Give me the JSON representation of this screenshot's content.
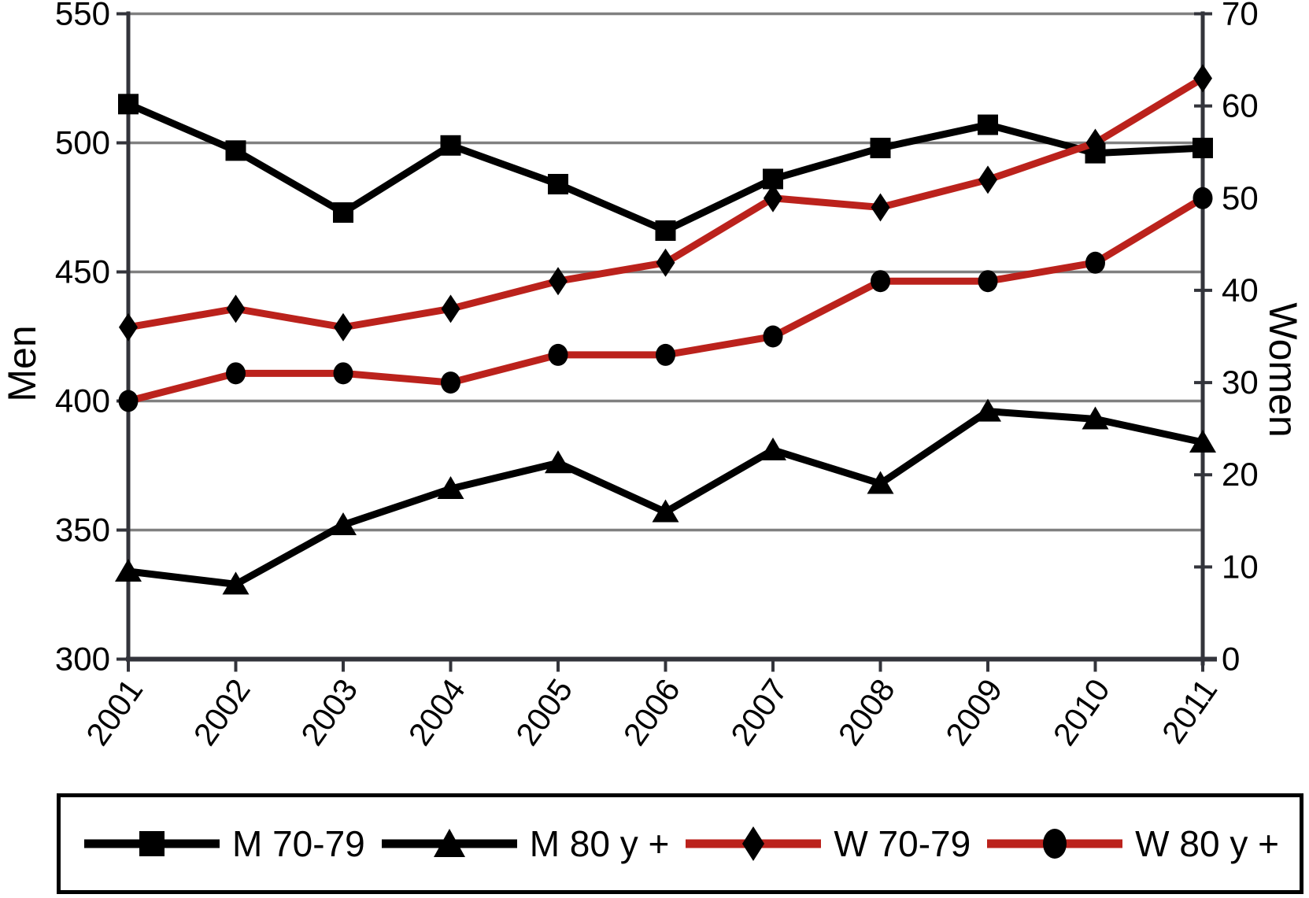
{
  "chart_data": {
    "type": "line",
    "title": "",
    "x": [
      2001,
      2002,
      2003,
      2004,
      2005,
      2006,
      2007,
      2008,
      2009,
      2010,
      2011
    ],
    "x_tick_labels": [
      "2001",
      "2002",
      "2003",
      "2004",
      "2005",
      "2006",
      "2007",
      "2008",
      "2009",
      "2010",
      "2011"
    ],
    "left_axis": {
      "label": "Men",
      "min": 300,
      "max": 550,
      "tick_step": 50,
      "tick_values": [
        300,
        350,
        400,
        450,
        500,
        550
      ]
    },
    "right_axis": {
      "label": "Women",
      "min": 0,
      "max": 70,
      "tick_step": 10,
      "tick_values": [
        0,
        10,
        20,
        30,
        40,
        50,
        60,
        70
      ]
    },
    "gridlines_at_left_values": [
      350,
      400,
      450,
      500,
      550
    ],
    "grid": true,
    "legend_position": "bottom",
    "series": [
      {
        "name": "M 70-79",
        "axis": "left",
        "color": "#000000",
        "marker": "square",
        "marker_color": "#000000",
        "values": [
          515,
          497,
          473,
          499,
          484,
          466,
          486,
          498,
          507,
          496,
          498
        ]
      },
      {
        "name": "M 80 y +",
        "axis": "left",
        "color": "#000000",
        "marker": "triangle",
        "marker_color": "#000000",
        "values": [
          334,
          329,
          352,
          366,
          376,
          357,
          381,
          368,
          396,
          393,
          384
        ]
      },
      {
        "name": "W 70-79",
        "axis": "right",
        "color": "#bb221c",
        "marker": "diamond",
        "marker_color": "#000000",
        "values": [
          36,
          38,
          36,
          38,
          41,
          43,
          50,
          49,
          52,
          56,
          63
        ]
      },
      {
        "name": "W 80 y +",
        "axis": "right",
        "color": "#bb221c",
        "marker": "circle",
        "marker_color": "#000000",
        "values": [
          28,
          31,
          31,
          30,
          33,
          33,
          35,
          41,
          41,
          43,
          50
        ]
      }
    ],
    "colors": {
      "series_black": "#000000",
      "series_red": "#bb221c",
      "gridline": "#808080",
      "axis": "#33343b",
      "text": "#000000",
      "background": "#ffffff"
    }
  }
}
